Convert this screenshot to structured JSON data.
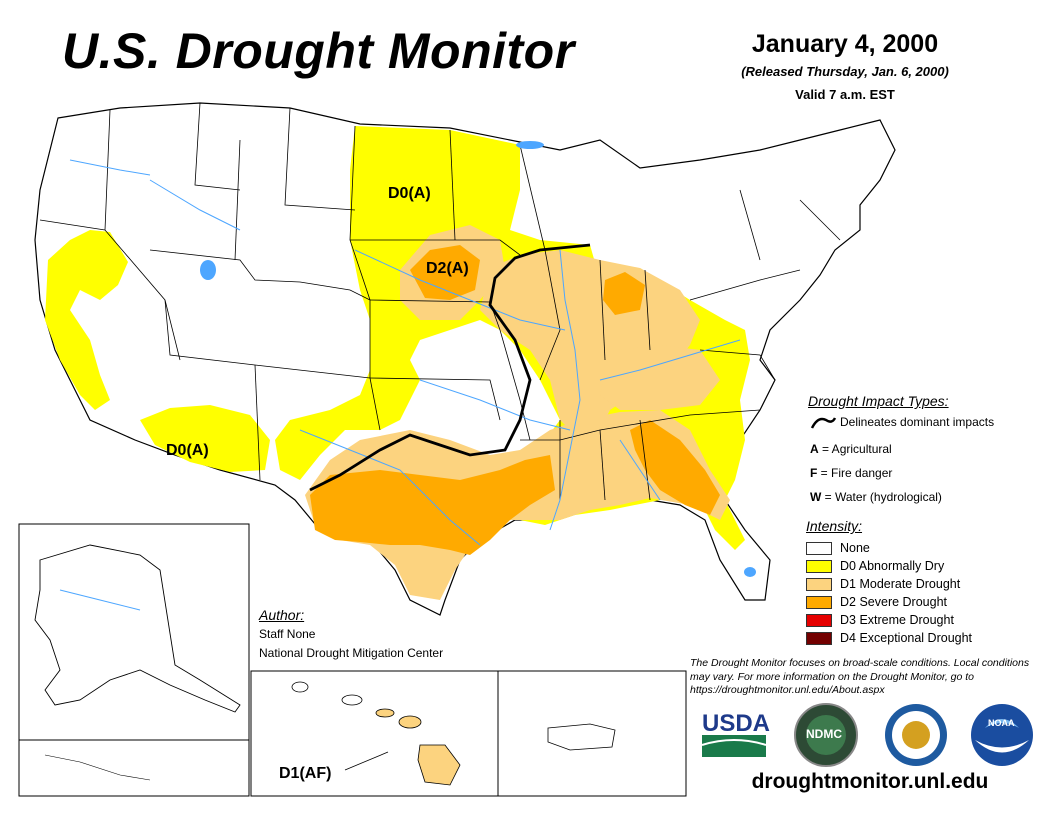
{
  "header": {
    "title": "U.S. Drought Monitor",
    "date": "January 4, 2000",
    "released": "(Released Thursday, Jan. 6, 2000)",
    "valid": "Valid 7 a.m. EST"
  },
  "map_labels": {
    "d0_north": "D0(A)",
    "d2_midwest": "D2(A)",
    "d0_southwest": "D0(A)",
    "hawaii": "D1(AF)"
  },
  "impact_legend": {
    "title": "Drought Impact Types:",
    "line_text": "Delineates dominant impacts",
    "types": [
      {
        "code": "A",
        "text": " = Agricultural"
      },
      {
        "code": "F",
        "text": " = Fire danger"
      },
      {
        "code": "W",
        "text": " = Water (hydrological)"
      }
    ]
  },
  "intensity_legend": {
    "title": "Intensity:",
    "items": [
      {
        "label": "None",
        "color": "#ffffff"
      },
      {
        "label": "D0 Abnormally Dry",
        "color": "#ffff00"
      },
      {
        "label": "D1 Moderate Drought",
        "color": "#fcd37f"
      },
      {
        "label": "D2 Severe Drought",
        "color": "#ffaa00"
      },
      {
        "label": "D3 Extreme Drought",
        "color": "#e60000"
      },
      {
        "label": "D4 Exceptional Drought",
        "color": "#730000"
      }
    ]
  },
  "author": {
    "heading": "Author:",
    "name": "Staff None",
    "org": "National Drought Mitigation Center"
  },
  "note": "The Drought Monitor focuses on broad-scale conditions. Local conditions may vary. For more information on the Drought Monitor, go to https://droughtmonitor.unl.edu/About.aspx",
  "logos": {
    "usda": "USDA",
    "ndmc": "NDMC",
    "noaa": "NOAA"
  },
  "footer_url": "droughtmonitor.unl.edu",
  "colors": {
    "d0": "#ffff00",
    "d1": "#fcd37f",
    "d2": "#ffaa00",
    "water": "#4da6ff"
  }
}
